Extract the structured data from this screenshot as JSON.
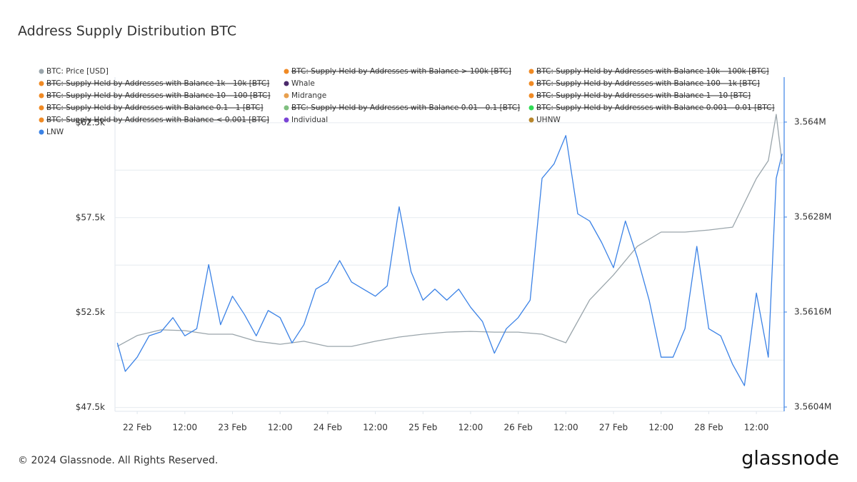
{
  "chart_data": {
    "type": "line",
    "title": "Address Supply Distribution BTC",
    "footer": "© 2024 Glassnode. All Rights Reserved.",
    "brand": "glassnode",
    "xlim": [
      -5.6,
      163
    ],
    "xticks": [
      {
        "value": 0,
        "label": "22 Feb"
      },
      {
        "value": 12,
        "label": "12:00"
      },
      {
        "value": 24,
        "label": "23 Feb"
      },
      {
        "value": 36,
        "label": "12:00"
      },
      {
        "value": 48,
        "label": "24 Feb"
      },
      {
        "value": 60,
        "label": "12:00"
      },
      {
        "value": 72,
        "label": "25 Feb"
      },
      {
        "value": 84,
        "label": "12:00"
      },
      {
        "value": 96,
        "label": "26 Feb"
      },
      {
        "value": 108,
        "label": "12:00"
      },
      {
        "value": 120,
        "label": "27 Feb"
      },
      {
        "value": 132,
        "label": "12:00"
      },
      {
        "value": 144,
        "label": "28 Feb"
      },
      {
        "value": 156,
        "label": "12:00"
      }
    ],
    "ylim": [
      47300,
      64900
    ],
    "yticks": [
      {
        "value": 47500,
        "label": "$47.5k"
      },
      {
        "value": 52500,
        "label": "$52.5k"
      },
      {
        "value": 57500,
        "label": "$57.5k"
      },
      {
        "value": 62500,
        "label": "$62.5k"
      }
    ],
    "ygrid": [
      50000,
      55000,
      60000
    ],
    "y2lim": [
      3560346,
      3564568
    ],
    "y2ticks": [
      {
        "value": 3560400,
        "label": "3.5604M"
      },
      {
        "value": 3561600,
        "label": "3.5616M"
      },
      {
        "value": 3562800,
        "label": "3.5628M"
      },
      {
        "value": 3564000,
        "label": "3.564M"
      }
    ],
    "grid": true,
    "series": [
      {
        "name": "BTC: Price [USD]",
        "color": "#9aa5ab",
        "axis": "y",
        "x": [
          -5,
          0,
          6,
          12,
          18,
          24,
          30,
          36,
          42,
          48,
          54,
          60,
          66,
          72,
          78,
          84,
          90,
          96,
          102,
          108,
          114,
          120,
          126,
          132,
          138,
          144,
          150,
          156,
          159,
          161,
          162.5
        ],
        "values": [
          50720,
          51290,
          51590,
          51550,
          51360,
          51360,
          50990,
          50830,
          50990,
          50720,
          50720,
          50990,
          51210,
          51360,
          51470,
          51510,
          51470,
          51470,
          51360,
          50910,
          53170,
          54480,
          55990,
          56740,
          56740,
          56850,
          57000,
          59560,
          60500,
          62940,
          60310
        ]
      },
      {
        "name": "BTC: Supply Held by Addresses with Balance > 100k [BTC]",
        "color": "#f08a24",
        "hidden": true
      },
      {
        "name": "BTC: Supply Held by Addresses with Balance 10k - 100k [BTC]",
        "color": "#f08a24",
        "hidden": true
      },
      {
        "name": "BTC: Supply Held by Addresses with Balance 1k - 10k [BTC]",
        "color": "#f08a24",
        "hidden": true
      },
      {
        "name": "Whale",
        "color": "#4b2a6b"
      },
      {
        "name": "BTC: Supply Held by Addresses with Balance 100 - 1k [BTC]",
        "color": "#f08a24",
        "hidden": true
      },
      {
        "name": "BTC: Supply Held by Addresses with Balance 10 - 100 [BTC]",
        "color": "#f08a24",
        "hidden": true
      },
      {
        "name": "Midrange",
        "color": "#e8a04e"
      },
      {
        "name": "BTC: Supply Held by Addresses with Balance 1 - 10 [BTC]",
        "color": "#f08a24",
        "hidden": true
      },
      {
        "name": "BTC: Supply Held by Addresses with Balance 0.1 - 1 [BTC]",
        "color": "#f08a24",
        "hidden": true
      },
      {
        "name": "BTC: Supply Held by Addresses with Balance 0.01 - 0.1 [BTC]",
        "color": "#7fbf7f",
        "hidden": true
      },
      {
        "name": "BTC: Supply Held by Addresses with Balance 0.001 - 0.01 [BTC]",
        "color": "#2fdc55",
        "hidden": true
      },
      {
        "name": "BTC: Supply Held by Addresses with Balance < 0.001 [BTC]",
        "color": "#f08a24",
        "hidden": true
      },
      {
        "name": "Individual",
        "color": "#7a44d6"
      },
      {
        "name": "UHNW",
        "color": "#b8862b"
      },
      {
        "name": "LNW",
        "color": "#3b82e6",
        "axis": "y2",
        "x": [
          -5,
          -3,
          0,
          3,
          6,
          9,
          12,
          15,
          18,
          21,
          24,
          27,
          30,
          33,
          36,
          39,
          42,
          45,
          48,
          51,
          54,
          57,
          60,
          63,
          66,
          67,
          69,
          72,
          75,
          78,
          81,
          84,
          87,
          90,
          93,
          96,
          99,
          102,
          105,
          108,
          111,
          114,
          117,
          120,
          123,
          126,
          129,
          132,
          135,
          138,
          141,
          144,
          147,
          150,
          153,
          156,
          159,
          161,
          162.5
        ],
        "values": [
          3561210,
          3560850,
          3561030,
          3561300,
          3561350,
          3561530,
          3561300,
          3561390,
          3562200,
          3561440,
          3561800,
          3561570,
          3561300,
          3561620,
          3561530,
          3561210,
          3561440,
          3561890,
          3561980,
          3562250,
          3561980,
          3561890,
          3561800,
          3561930,
          3562930,
          3562660,
          3562110,
          3561750,
          3561890,
          3561750,
          3561890,
          3561660,
          3561480,
          3561080,
          3561390,
          3561530,
          3561750,
          3563290,
          3563470,
          3563830,
          3562840,
          3562750,
          3562480,
          3562160,
          3562750,
          3562290,
          3561750,
          3561030,
          3561030,
          3561390,
          3562430,
          3561390,
          3561300,
          3560940,
          3560670,
          3561840,
          3561030,
          3563290,
          3563600
        ]
      }
    ]
  }
}
